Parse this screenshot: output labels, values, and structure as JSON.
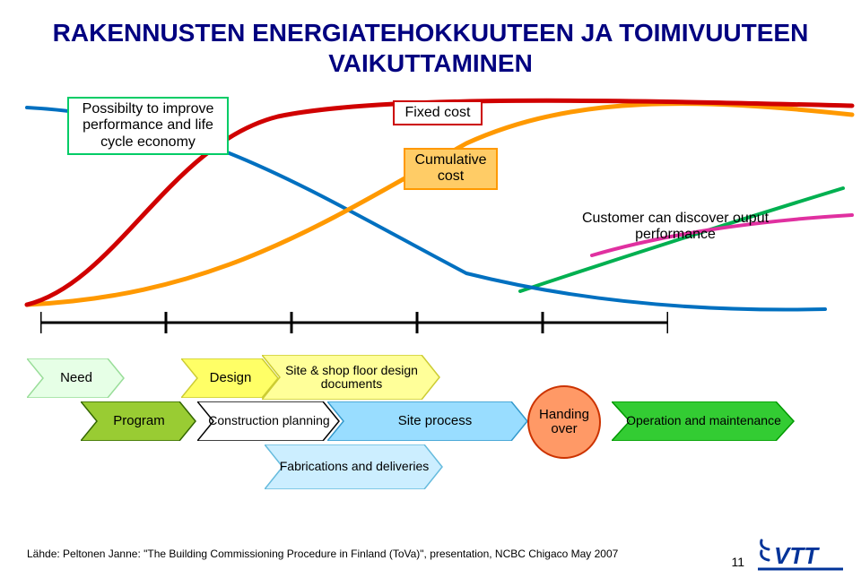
{
  "title": "RAKENNUSTEN ENERGIATEHOKKUUTEEN JA TOIMIVUUTEEN VAIKUTTAMINEN",
  "labels": {
    "possibility": "Possibilty to improve performance and life cycle economy",
    "fixed_cost": "Fixed cost",
    "cumulative_cost": "Cumulative cost",
    "customer_discover": "Customer can discover ouput performance"
  },
  "phases": {
    "need": "Need",
    "program": "Program",
    "design": "Design",
    "site_shop": "Site & shop floor design documents",
    "construction_planning": "Construction planning",
    "site_process": "Site process",
    "fabrications": "Fabrications and deliveries",
    "handing_over": "Handing over",
    "operation": "Operation and maintenance"
  },
  "colors": {
    "title": "#000080",
    "need_fill": "#e6ffe6",
    "need_stroke": "#99dd99",
    "program_fill": "#99cc33",
    "program_stroke": "#336600",
    "design_fill": "#ffff66",
    "design_stroke": "#cccc33",
    "siteshop_fill": "#ffff99",
    "siteshop_stroke": "#cccc33",
    "constplan_fill": "#ffffff",
    "constplan_stroke": "#000000",
    "siteproc_fill": "#99ddff",
    "siteproc_stroke": "#3399cc",
    "fab_fill": "#cceeff",
    "fab_stroke": "#66bbdd",
    "handing_fill": "#ff9966",
    "handing_stroke": "#cc3300",
    "operation_fill": "#33cc33",
    "operation_stroke": "#009900",
    "curve_green": "#00b050",
    "curve_blue": "#0070c0",
    "curve_orange": "#ff9900",
    "curve_red": "#d00000",
    "curve_magenta": "#e030a0",
    "timeline": "#000000",
    "logo_blue": "#003399"
  },
  "timeline": {
    "ticks": [
      0,
      140,
      280,
      420,
      560,
      700
    ]
  },
  "footer": "Lähde: Peltonen Janne: \"The Building Commissioning Procedure in Finland (ToVa)\", presentation, NCBC Chigaco May 2007",
  "page": "11",
  "logo_text": "VTT"
}
